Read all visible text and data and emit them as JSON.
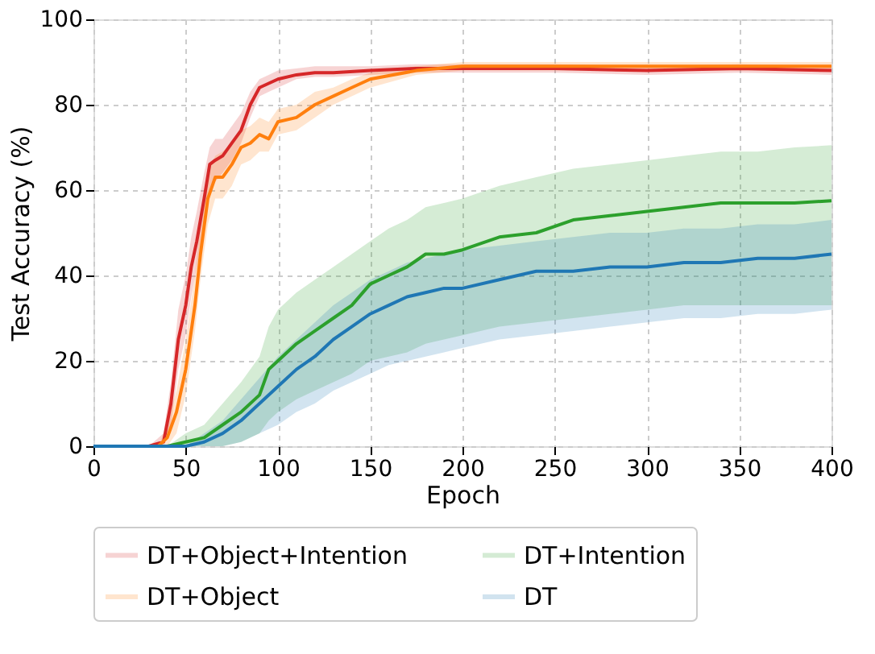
{
  "chart_data": {
    "type": "line",
    "xlabel": "Epoch",
    "ylabel": "Test Accuracy (%)",
    "xlim": [
      0,
      400
    ],
    "ylim": [
      0,
      100
    ],
    "xticks": [
      0,
      50,
      100,
      150,
      200,
      250,
      300,
      350,
      400
    ],
    "yticks": [
      0,
      20,
      40,
      60,
      80,
      100
    ],
    "grid": true,
    "legend": "bottom",
    "line_style": "solid",
    "marker": "none",
    "series": [
      {
        "name": "DT+Object+Intention",
        "color": "#d62728",
        "x": [
          0,
          30,
          38,
          42,
          46,
          50,
          53,
          56,
          60,
          63,
          66,
          70,
          75,
          80,
          85,
          90,
          95,
          100,
          110,
          120,
          130,
          150,
          175,
          200,
          250,
          300,
          350,
          400
        ],
        "values": [
          0,
          0,
          1,
          10,
          25,
          33,
          42,
          48,
          58,
          66,
          67,
          68,
          71,
          74,
          80,
          84,
          85,
          86,
          87,
          87.5,
          87.5,
          88,
          88.5,
          88.5,
          88.5,
          88,
          88.5,
          88
        ],
        "lower": [
          0,
          0,
          0,
          5,
          18,
          26,
          35,
          42,
          52,
          60,
          62,
          64,
          67,
          71,
          77,
          82,
          83,
          84,
          86,
          86.5,
          86.5,
          87,
          87.5,
          87.5,
          87.5,
          87,
          87.5,
          87
        ],
        "upper": [
          0,
          0,
          3,
          15,
          32,
          40,
          49,
          55,
          64,
          70,
          72,
          72,
          75,
          78,
          83,
          86,
          87,
          88,
          88.5,
          89,
          89,
          89,
          89.5,
          89.5,
          89.5,
          89,
          89.5,
          89
        ]
      },
      {
        "name": "DT+Object",
        "color": "#ff7f0e",
        "x": [
          0,
          35,
          40,
          45,
          50,
          55,
          58,
          62,
          66,
          70,
          75,
          80,
          85,
          90,
          95,
          100,
          110,
          120,
          130,
          140,
          150,
          175,
          200,
          250,
          300,
          350,
          400
        ],
        "values": [
          0,
          0,
          2,
          8,
          18,
          33,
          45,
          58,
          63,
          63,
          66,
          70,
          71,
          73,
          72,
          76,
          77,
          80,
          82,
          84,
          86,
          88,
          89,
          89,
          89,
          89,
          89
        ],
        "lower": [
          0,
          0,
          0,
          3,
          12,
          27,
          39,
          52,
          58,
          58,
          61,
          66,
          67,
          69,
          69,
          73,
          74,
          77,
          80,
          82,
          84,
          87,
          88,
          88,
          88,
          88,
          88
        ],
        "upper": [
          0,
          0,
          5,
          13,
          25,
          40,
          52,
          64,
          68,
          69,
          71,
          74,
          75,
          77,
          76,
          79,
          80,
          83,
          84,
          86,
          87.5,
          89,
          90,
          90,
          90,
          90,
          90
        ]
      },
      {
        "name": "DT+Intention",
        "color": "#2ca02c",
        "x": [
          0,
          40,
          50,
          60,
          70,
          80,
          90,
          95,
          100,
          110,
          120,
          130,
          140,
          150,
          160,
          170,
          180,
          190,
          200,
          220,
          240,
          260,
          280,
          300,
          320,
          340,
          360,
          380,
          400
        ],
        "values": [
          0,
          0,
          1,
          2,
          5,
          8,
          12,
          18,
          20,
          24,
          27,
          30,
          33,
          38,
          40,
          42,
          45,
          45,
          46,
          49,
          50,
          53,
          54,
          55,
          56,
          57,
          57,
          57,
          57.5
        ],
        "lower": [
          0,
          0,
          0,
          0,
          0,
          1,
          3,
          6,
          8,
          11,
          13,
          15,
          17,
          20,
          21,
          22,
          24,
          25,
          26,
          28,
          29,
          30,
          31,
          32,
          33,
          33,
          33,
          33,
          33
        ],
        "upper": [
          0,
          0,
          3,
          5,
          10,
          15,
          21,
          28,
          32,
          36,
          39,
          42,
          45,
          48,
          51,
          53,
          56,
          57,
          58,
          61,
          63,
          65,
          66,
          67,
          68,
          69,
          69,
          70,
          70.5
        ]
      },
      {
        "name": "DT",
        "color": "#1f77b4",
        "x": [
          0,
          50,
          60,
          70,
          80,
          90,
          100,
          110,
          120,
          130,
          140,
          150,
          160,
          170,
          180,
          190,
          200,
          220,
          240,
          260,
          280,
          300,
          320,
          340,
          360,
          380,
          400
        ],
        "values": [
          0,
          0,
          1,
          3,
          6,
          10,
          14,
          18,
          21,
          25,
          28,
          31,
          33,
          35,
          36,
          37,
          37,
          39,
          41,
          41,
          42,
          42,
          43,
          43,
          44,
          44,
          45
        ],
        "lower": [
          0,
          0,
          0,
          0,
          1,
          3,
          5,
          8,
          10,
          13,
          15,
          17,
          19,
          20,
          21,
          22,
          23,
          25,
          26,
          27,
          28,
          29,
          30,
          30,
          31,
          31,
          32
        ],
        "upper": [
          0,
          0,
          3,
          6,
          11,
          16,
          21,
          25,
          29,
          33,
          36,
          39,
          41,
          43,
          44,
          45,
          46,
          47,
          48,
          49,
          50,
          50,
          51,
          51,
          52,
          52,
          53
        ]
      }
    ]
  }
}
